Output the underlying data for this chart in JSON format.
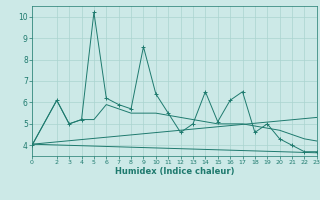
{
  "xlabel": "Humidex (Indice chaleur)",
  "x": [
    0,
    2,
    3,
    4,
    5,
    6,
    7,
    8,
    9,
    10,
    11,
    12,
    13,
    14,
    15,
    16,
    17,
    18,
    19,
    20,
    21,
    22,
    23
  ],
  "line1": [
    4.0,
    6.1,
    5.0,
    5.2,
    10.2,
    6.2,
    5.9,
    5.7,
    8.6,
    6.4,
    5.5,
    4.6,
    5.0,
    6.5,
    5.1,
    6.1,
    6.5,
    4.6,
    5.0,
    4.3,
    4.0,
    3.7,
    3.7
  ],
  "line2": [
    4.0,
    6.1,
    5.0,
    5.2,
    5.2,
    5.9,
    5.7,
    5.5,
    5.5,
    5.5,
    5.4,
    5.3,
    5.2,
    5.1,
    5.0,
    5.0,
    5.0,
    4.9,
    4.8,
    4.7,
    4.5,
    4.3,
    4.2
  ],
  "line3_x": [
    0,
    23
  ],
  "line3_y": [
    4.05,
    3.65
  ],
  "line4_x": [
    0,
    23
  ],
  "line4_y": [
    4.05,
    5.3
  ],
  "ylim": [
    3.5,
    10.5
  ],
  "xlim": [
    0,
    23
  ],
  "yticks": [
    4,
    5,
    6,
    7,
    8,
    9,
    10
  ],
  "xticks": [
    0,
    2,
    3,
    4,
    5,
    6,
    7,
    8,
    9,
    10,
    11,
    12,
    13,
    14,
    15,
    16,
    17,
    18,
    19,
    20,
    21,
    22,
    23
  ],
  "line_color": "#1e7a6e",
  "bg_color": "#cce9e7",
  "grid_color": "#aad4d0",
  "tick_color": "#1e7a6e"
}
